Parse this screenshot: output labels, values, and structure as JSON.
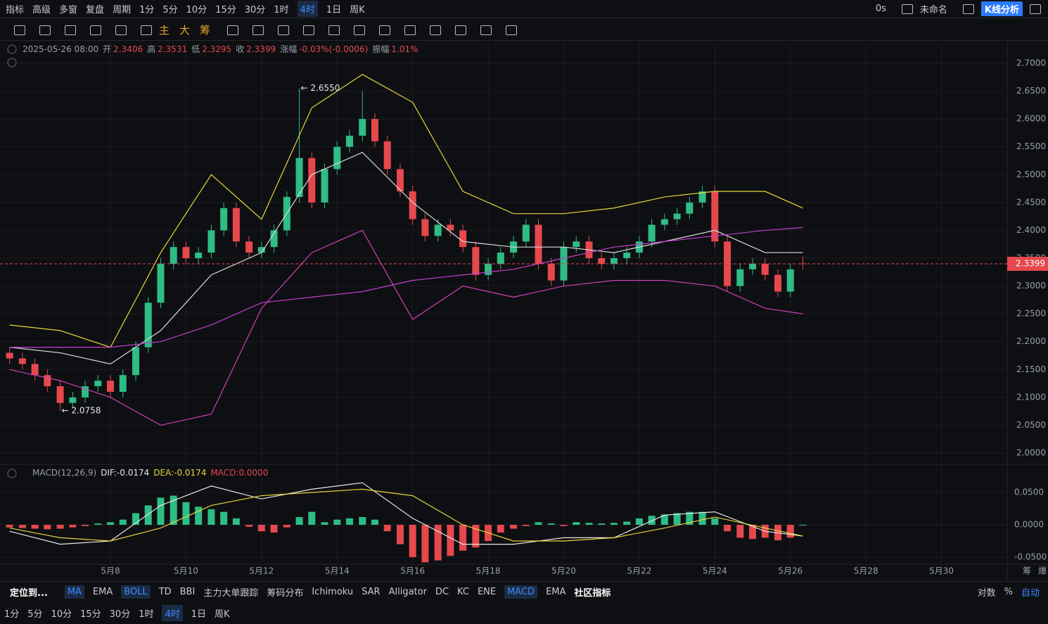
{
  "ui": {
    "top_left": [
      "指标",
      "高级",
      "多窗",
      "复盘"
    ],
    "period_label": "周期",
    "periods": [
      "1分",
      "5分",
      "10分",
      "15分",
      "30分",
      "1时",
      "4时",
      "1日",
      "周K"
    ],
    "active_period": 6,
    "top_right": [
      "0s",
      "未命名"
    ],
    "analysis": "K线分析",
    "tool_text": [
      "主",
      "大",
      "筹"
    ],
    "locate": "定位到...",
    "main_indicators": [
      "MA",
      "EMA",
      "BOLL",
      "TD",
      "BBI",
      "主力大单跟踪",
      "筹码分布",
      "Ichimoku",
      "SAR",
      "Alligator",
      "DC",
      "KC",
      "ENE"
    ],
    "active_main": [
      0,
      2
    ],
    "sub_indicators": [
      "MACD",
      "EMA"
    ],
    "active_sub": [
      0
    ],
    "community": "社区指标",
    "scale_options": [
      "对数",
      "%",
      "自动"
    ],
    "bottom_periods": [
      "1分",
      "5分",
      "10分",
      "15分",
      "30分",
      "1时",
      "4时",
      "1日",
      "周K"
    ],
    "bottom_active": 6,
    "corner": [
      "筹",
      "爆"
    ]
  },
  "chart_data": {
    "type": "candlestick",
    "info_time": "2025-05-26 08:00",
    "info": [
      {
        "label": "开",
        "text": 2.3406
      },
      {
        "label": "高",
        "text": 2.3531
      },
      {
        "label": "低",
        "text": 2.3295
      },
      {
        "label": "收",
        "text": 2.3399
      },
      {
        "label": "涨幅",
        "text": "-0.03%(-0.0006)"
      },
      {
        "label": "振幅",
        "text": "1.01%"
      }
    ],
    "up_color": "#2ebd85",
    "down_color": "#e5484d",
    "x": [
      5.33,
      5.67,
      6,
      6.33,
      6.67,
      7,
      7.33,
      7.67,
      8,
      8.33,
      8.67,
      9,
      9.33,
      9.67,
      10,
      10.33,
      10.67,
      11,
      11.33,
      11.67,
      12,
      12.33,
      12.67,
      13,
      13.33,
      13.67,
      14,
      14.33,
      14.67,
      15,
      15.33,
      15.67,
      16,
      16.33,
      16.67,
      17,
      17.33,
      17.67,
      18,
      18.33,
      18.67,
      19,
      19.33,
      19.67,
      20,
      20.33,
      20.67,
      21,
      21.33,
      21.67,
      22,
      22.33,
      22.67,
      23,
      23.33,
      23.67,
      24,
      24.33,
      24.67,
      25,
      25.33,
      25.67,
      26,
      26.33
    ],
    "open": [
      2.18,
      2.17,
      2.16,
      2.14,
      2.12,
      2.09,
      2.1,
      2.12,
      2.13,
      2.11,
      2.14,
      2.19,
      2.27,
      2.34,
      2.37,
      2.35,
      2.36,
      2.4,
      2.44,
      2.38,
      2.36,
      2.37,
      2.4,
      2.46,
      2.53,
      2.45,
      2.51,
      2.55,
      2.57,
      2.6,
      2.56,
      2.51,
      2.47,
      2.42,
      2.39,
      2.41,
      2.4,
      2.37,
      2.32,
      2.34,
      2.36,
      2.38,
      2.41,
      2.34,
      2.31,
      2.37,
      2.38,
      2.35,
      2.34,
      2.35,
      2.36,
      2.38,
      2.41,
      2.42,
      2.43,
      2.45,
      2.47,
      2.38,
      2.3,
      2.33,
      2.34,
      2.32,
      2.29,
      2.3406
    ],
    "high": [
      2.19,
      2.18,
      2.17,
      2.15,
      2.13,
      2.11,
      2.13,
      2.14,
      2.14,
      2.15,
      2.2,
      2.28,
      2.35,
      2.38,
      2.38,
      2.37,
      2.41,
      2.45,
      2.45,
      2.39,
      2.38,
      2.41,
      2.47,
      2.655,
      2.54,
      2.52,
      2.56,
      2.58,
      2.65,
      2.61,
      2.57,
      2.52,
      2.48,
      2.43,
      2.42,
      2.42,
      2.41,
      2.38,
      2.35,
      2.37,
      2.39,
      2.42,
      2.42,
      2.35,
      2.38,
      2.39,
      2.39,
      2.36,
      2.36,
      2.37,
      2.39,
      2.42,
      2.43,
      2.44,
      2.46,
      2.48,
      2.48,
      2.39,
      2.34,
      2.35,
      2.35,
      2.33,
      2.34,
      2.3531
    ],
    "low": [
      2.16,
      2.15,
      2.13,
      2.11,
      2.0758,
      2.08,
      2.09,
      2.11,
      2.1,
      2.1,
      2.13,
      2.18,
      2.26,
      2.33,
      2.34,
      2.34,
      2.35,
      2.39,
      2.37,
      2.35,
      2.35,
      2.36,
      2.39,
      2.45,
      2.44,
      2.44,
      2.5,
      2.54,
      2.56,
      2.55,
      2.5,
      2.46,
      2.41,
      2.38,
      2.38,
      2.39,
      2.36,
      2.31,
      2.31,
      2.33,
      2.35,
      2.37,
      2.33,
      2.3,
      2.3,
      2.36,
      2.34,
      2.33,
      2.33,
      2.34,
      2.35,
      2.37,
      2.4,
      2.41,
      2.42,
      2.44,
      2.37,
      2.29,
      2.29,
      2.32,
      2.31,
      2.28,
      2.28,
      2.3295
    ],
    "close": [
      2.17,
      2.16,
      2.14,
      2.12,
      2.09,
      2.1,
      2.12,
      2.13,
      2.11,
      2.14,
      2.19,
      2.27,
      2.34,
      2.37,
      2.35,
      2.36,
      2.4,
      2.44,
      2.38,
      2.36,
      2.37,
      2.4,
      2.46,
      2.53,
      2.45,
      2.51,
      2.55,
      2.57,
      2.6,
      2.56,
      2.51,
      2.47,
      2.42,
      2.39,
      2.41,
      2.4,
      2.37,
      2.32,
      2.34,
      2.36,
      2.38,
      2.41,
      2.34,
      2.31,
      2.37,
      2.38,
      2.35,
      2.34,
      2.35,
      2.36,
      2.38,
      2.41,
      2.42,
      2.43,
      2.45,
      2.47,
      2.38,
      2.3,
      2.33,
      2.34,
      2.32,
      2.29,
      2.33,
      2.3399
    ],
    "line_x": [
      5.33,
      6.67,
      8,
      9.33,
      10.67,
      12,
      13.33,
      14.67,
      16,
      17.33,
      18.67,
      20,
      21.33,
      22.67,
      24,
      25.33,
      26.33
    ],
    "lines": [
      {
        "color": "#e8d63a",
        "values": [
          2.23,
          2.22,
          2.19,
          2.36,
          2.5,
          2.42,
          2.62,
          2.68,
          2.63,
          2.47,
          2.43,
          2.43,
          2.44,
          2.46,
          2.47,
          2.47,
          2.44
        ]
      },
      {
        "color": "#d9d9d9",
        "values": [
          2.19,
          2.18,
          2.16,
          2.22,
          2.32,
          2.36,
          2.5,
          2.54,
          2.45,
          2.38,
          2.37,
          2.37,
          2.36,
          2.38,
          2.4,
          2.36,
          2.36
        ]
      },
      {
        "color": "#d23fb4",
        "values": [
          2.15,
          2.13,
          2.1,
          2.05,
          2.07,
          2.26,
          2.36,
          2.4,
          2.24,
          2.3,
          2.28,
          2.3,
          2.31,
          2.31,
          2.3,
          2.26,
          2.25
        ]
      },
      {
        "color": "#c43fd0",
        "values": [
          2.19,
          2.19,
          2.19,
          2.2,
          2.23,
          2.27,
          2.28,
          2.29,
          2.31,
          2.32,
          2.33,
          2.35,
          2.37,
          2.38,
          2.39,
          2.4,
          2.405
        ]
      }
    ],
    "annotations": [
      {
        "text": "← 2.6550",
        "x": 13,
        "y": 2.655
      },
      {
        "text": "← 2.0758",
        "x": 6.67,
        "y": 2.0758
      }
    ],
    "xlim": [
      5.076,
      31.74
    ],
    "ylim": [
      1.9861,
      2.7379
    ],
    "xticks": [
      {
        "value": 8,
        "label": "5月8"
      },
      {
        "value": 10,
        "label": "5月10"
      },
      {
        "value": 12,
        "label": "5月12"
      },
      {
        "value": 14,
        "label": "5月14"
      },
      {
        "value": 16,
        "label": "5月16"
      },
      {
        "value": 18,
        "label": "5月18"
      },
      {
        "value": 20,
        "label": "5月20"
      },
      {
        "value": 22,
        "label": "5月22"
      },
      {
        "value": 24,
        "label": "5月24"
      },
      {
        "value": 26,
        "label": "5月26"
      },
      {
        "value": 28,
        "label": "5月28"
      },
      {
        "value": 30,
        "label": "5月30"
      }
    ],
    "yticks": [
      {
        "value": 2.0,
        "label": "2.0000"
      },
      {
        "value": 2.05,
        "label": "2.0500"
      },
      {
        "value": 2.1,
        "label": "2.1000"
      },
      {
        "value": 2.15,
        "label": "2.1500"
      },
      {
        "value": 2.2,
        "label": "2.2000"
      },
      {
        "value": 2.25,
        "label": "2.2500"
      },
      {
        "value": 2.3,
        "label": "2.3000"
      },
      {
        "value": 2.35,
        "label": "2.3500"
      },
      {
        "value": 2.4,
        "label": "2.4000"
      },
      {
        "value": 2.45,
        "label": "2.4500"
      },
      {
        "value": 2.5,
        "label": "2.5000"
      },
      {
        "value": 2.55,
        "label": "2.5500"
      },
      {
        "value": 2.6,
        "label": "2.6000"
      },
      {
        "value": 2.65,
        "label": "2.6500"
      },
      {
        "value": 2.7,
        "label": "2.7000"
      }
    ],
    "grid": true,
    "macd": {
      "title": "MACD(12,26,9)",
      "dif_label": "DIF:-0.0174",
      "dea_label": "DEA:-0.0174",
      "macd_label": "MACD:0.0000",
      "hist": [
        -0.004,
        -0.005,
        -0.006,
        -0.007,
        -0.006,
        -0.004,
        -0.002,
        0.002,
        0.004,
        0.008,
        0.018,
        0.03,
        0.042,
        0.045,
        0.035,
        0.028,
        0.024,
        0.02,
        0.01,
        -0.003,
        -0.01,
        -0.012,
        -0.004,
        0.012,
        0.02,
        0.004,
        0.008,
        0.01,
        0.012,
        0.008,
        -0.01,
        -0.03,
        -0.05,
        -0.058,
        -0.055,
        -0.048,
        -0.04,
        -0.035,
        -0.025,
        -0.012,
        -0.006,
        -0.002,
        0.004,
        0.002,
        -0.002,
        0.004,
        0.003,
        0.002,
        0.003,
        0.005,
        0.01,
        0.014,
        0.016,
        0.018,
        0.02,
        0.02,
        0.01,
        -0.01,
        -0.02,
        -0.022,
        -0.02,
        -0.024,
        -0.02,
        0.0
      ],
      "dif": [
        -0.01,
        -0.03,
        -0.025,
        0.03,
        0.06,
        0.04,
        0.055,
        0.065,
        0.01,
        -0.03,
        -0.03,
        -0.02,
        -0.02,
        0.015,
        0.02,
        -0.01,
        -0.0174
      ],
      "dea": [
        -0.005,
        -0.02,
        -0.025,
        -0.005,
        0.03,
        0.045,
        0.05,
        0.055,
        0.045,
        0.0,
        -0.025,
        -0.025,
        -0.02,
        -0.005,
        0.012,
        -0.005,
        -0.0174
      ],
      "dif_color": "#e6e6e6",
      "dea_color": "#e8d63a",
      "ylim": [
        -0.0587,
        0.0913
      ],
      "yticks": [
        {
          "value": 0.05,
          "label": "0.0500"
        },
        {
          "value": 0,
          "label": "0.0000"
        },
        {
          "value": -0.05,
          "label": "-0.0500"
        }
      ]
    }
  }
}
